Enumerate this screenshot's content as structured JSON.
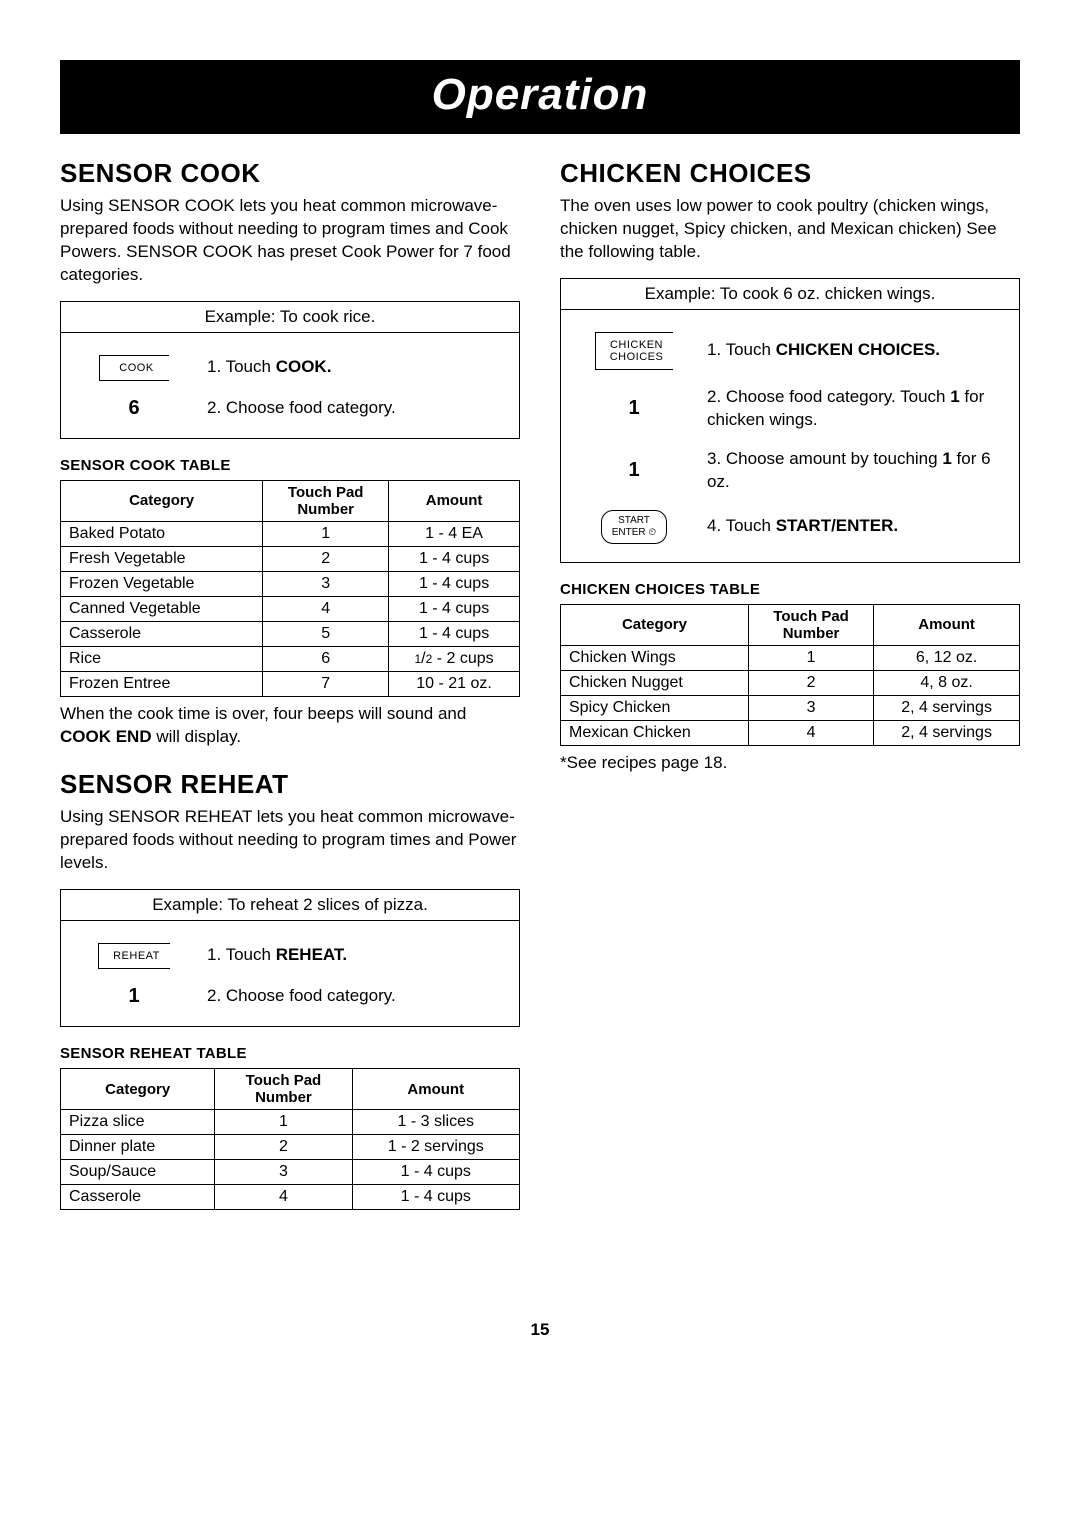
{
  "banner": "Operation",
  "page_number": "15",
  "left": {
    "sensor_cook": {
      "heading": "SENSOR COOK",
      "intro": "Using SENSOR COOK lets you heat common microwave-prepared foods without needing to program times and Cook Powers. SENSOR COOK has preset Cook Power for 7 food categories.",
      "example_header": "Example: To cook rice.",
      "steps": [
        {
          "key_type": "label",
          "key_text": "COOK",
          "text_pre": "1. Touch ",
          "bold": "COOK.",
          "text_post": ""
        },
        {
          "key_type": "num",
          "key_text": "6",
          "text_pre": "2. Choose food category.",
          "bold": "",
          "text_post": ""
        }
      ],
      "table_title": "SENSOR COOK TABLE",
      "columns": [
        "Category",
        "Touch Pad Number",
        "Amount"
      ],
      "rows": [
        [
          "Baked Potato",
          "1",
          "1 - 4 EA"
        ],
        [
          "Fresh Vegetable",
          "2",
          "1 - 4 cups"
        ],
        [
          "Frozen Vegetable",
          "3",
          "1 - 4 cups"
        ],
        [
          "Canned Vegetable",
          "4",
          "1 - 4 cups"
        ],
        [
          "Casserole",
          "5",
          "1 - 4 cups"
        ],
        [
          "Rice",
          "6",
          "1/2 - 2 cups"
        ],
        [
          "Frozen Entree",
          "7",
          "10 - 21 oz."
        ]
      ],
      "footnote_pre": "When the cook time is over, four beeps will sound and ",
      "footnote_bold": "COOK END",
      "footnote_post": " will display."
    },
    "sensor_reheat": {
      "heading": "SENSOR REHEAT",
      "intro": "Using SENSOR REHEAT lets you heat common microwave-prepared foods without needing to program times and Power levels.",
      "example_header": "Example: To reheat 2 slices of pizza.",
      "steps": [
        {
          "key_type": "label",
          "key_text": "REHEAT",
          "text_pre": "1. Touch ",
          "bold": "REHEAT.",
          "text_post": ""
        },
        {
          "key_type": "num",
          "key_text": "1",
          "text_pre": "2. Choose food category.",
          "bold": "",
          "text_post": ""
        }
      ],
      "table_title": "SENSOR REHEAT TABLE",
      "columns": [
        "Category",
        "Touch Pad Number",
        "Amount"
      ],
      "rows": [
        [
          "Pizza slice",
          "1",
          "1 - 3 slices"
        ],
        [
          "Dinner plate",
          "2",
          "1 - 2 servings"
        ],
        [
          "Soup/Sauce",
          "3",
          "1 - 4 cups"
        ],
        [
          "Casserole",
          "4",
          "1 - 4 cups"
        ]
      ]
    }
  },
  "right": {
    "chicken_choices": {
      "heading": "CHICKEN CHOICES",
      "intro": "The oven uses low power to cook poultry (chicken wings, chicken nugget, Spicy chicken, and Mexican chicken) See the following table.",
      "example_header": "Example: To cook 6 oz. chicken wings.",
      "steps": [
        {
          "key_type": "label2",
          "key_line1": "CHICKEN",
          "key_line2": "CHOICES",
          "text_pre": "1. Touch ",
          "bold": "CHICKEN CHOICES.",
          "text_post": ""
        },
        {
          "key_type": "num",
          "key_text": "1",
          "text_pre": "2. Choose food category. Touch ",
          "bold": "1",
          "text_post": " for chicken wings."
        },
        {
          "key_type": "num",
          "key_text": "1",
          "text_pre": "3. Choose amount by touching ",
          "bold": "1",
          "text_post": " for 6 oz."
        },
        {
          "key_type": "start",
          "key_line1": "START",
          "key_line2": "ENTER ⏲",
          "text_pre": "4. Touch ",
          "bold": "START/ENTER.",
          "text_post": ""
        }
      ],
      "table_title": "CHICKEN CHOICES TABLE",
      "columns": [
        "Category",
        "Touch Pad Number",
        "Amount"
      ],
      "rows": [
        [
          "Chicken Wings",
          "1",
          "6, 12 oz."
        ],
        [
          "Chicken Nugget",
          "2",
          "4, 8 oz."
        ],
        [
          "Spicy Chicken",
          "3",
          "2, 4 servings"
        ],
        [
          "Mexican Chicken",
          "4",
          "2, 4 servings"
        ]
      ],
      "footnote": "*See recipes page 18."
    }
  }
}
